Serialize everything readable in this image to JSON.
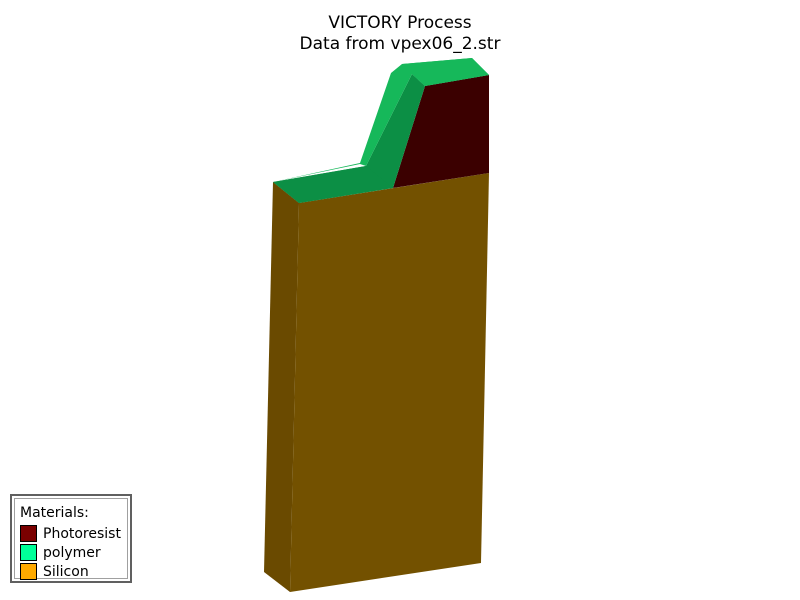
{
  "title": {
    "line1": "VICTORY Process",
    "line2": "Data from vpex06_2.str"
  },
  "legend": {
    "heading": "Materials:",
    "items": [
      {
        "label": "Photoresist",
        "color": "#7a0000"
      },
      {
        "label": "polymer",
        "color": "#00ff99"
      },
      {
        "label": "Silicon",
        "color": "#ffaa00"
      }
    ]
  },
  "materials": {
    "silicon_front": "#735100",
    "silicon_side": "#6a4a00",
    "photoresist": "#3b0000",
    "polymer_top": "#16b85a",
    "polymer_side": "#0c8f45"
  }
}
